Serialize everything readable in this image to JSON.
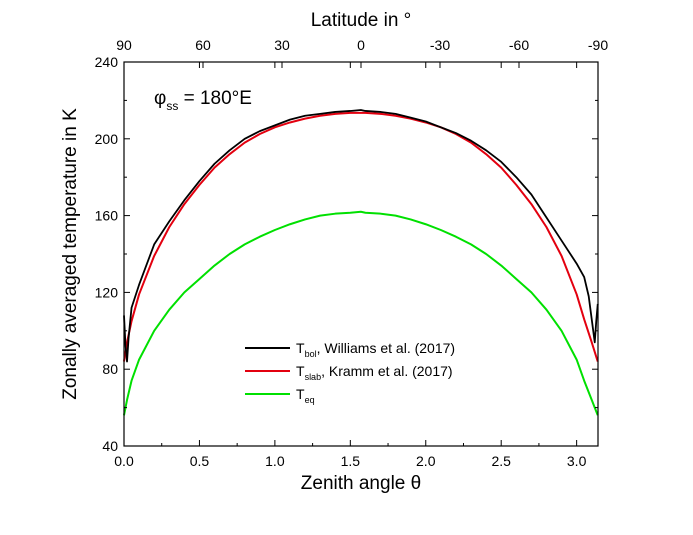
{
  "chart_data": {
    "type": "line",
    "xlabel": "Zenith angle θ",
    "ylabel": "Zonally averaged temperature in K",
    "x2label": "Latitude in °",
    "xlim": [
      0.0,
      3.1416
    ],
    "ylim": [
      40,
      240
    ],
    "x_ticks": [
      "0.0",
      "0.5",
      "1.0",
      "1.5",
      "2.0",
      "2.5",
      "3.0"
    ],
    "y_ticks": [
      "40",
      "80",
      "120",
      "160",
      "200",
      "240"
    ],
    "top_ticks": [
      "90",
      "60",
      "30",
      "0",
      "-30",
      "-60",
      "-90"
    ],
    "annotation": {
      "symbol": "φ",
      "subscript": "ss",
      "text": " = 180°E"
    },
    "legend_position": "lower-center",
    "series": [
      {
        "id": "tbol",
        "legend_main": "T",
        "legend_sub": "bol",
        "legend_rest": ", Williams et al. (2017)",
        "color": "#000000",
        "x": [
          0.0,
          0.01,
          0.02,
          0.03,
          0.05,
          0.1,
          0.2,
          0.3,
          0.4,
          0.5,
          0.6,
          0.7,
          0.8,
          0.9,
          1.0,
          1.1,
          1.2,
          1.3,
          1.4,
          1.5,
          1.57,
          1.6,
          1.7,
          1.8,
          1.9,
          2.0,
          2.1,
          2.2,
          2.3,
          2.4,
          2.5,
          2.6,
          2.7,
          2.8,
          2.9,
          3.0,
          3.05,
          3.08,
          3.1,
          3.12,
          3.13,
          3.14
        ],
        "y": [
          108,
          92,
          84,
          96,
          112,
          124,
          145,
          157,
          168,
          178,
          187,
          194,
          200,
          204,
          207,
          210,
          212,
          213,
          214,
          214.5,
          215,
          214.5,
          214,
          213,
          211,
          209,
          206,
          203,
          199,
          194,
          188,
          180,
          171,
          159,
          147,
          135,
          128,
          118,
          106,
          94,
          105,
          114
        ]
      },
      {
        "id": "tslab",
        "legend_main": "T",
        "legend_sub": "slab",
        "legend_rest": ", Kramm et al. (2017)",
        "color": "#e3000f",
        "x": [
          0.0,
          0.02,
          0.05,
          0.1,
          0.2,
          0.3,
          0.4,
          0.5,
          0.6,
          0.7,
          0.8,
          0.9,
          1.0,
          1.1,
          1.2,
          1.3,
          1.4,
          1.5,
          1.57,
          1.6,
          1.7,
          1.8,
          1.9,
          2.0,
          2.1,
          2.2,
          2.3,
          2.4,
          2.5,
          2.6,
          2.7,
          2.8,
          2.9,
          3.0,
          3.05,
          3.1,
          3.12,
          3.14
        ],
        "y": [
          84,
          94,
          105,
          119,
          139,
          154,
          166,
          176,
          185,
          192,
          198,
          202.5,
          206,
          208.5,
          210.5,
          212,
          213,
          213.5,
          213.5,
          213.5,
          213,
          212,
          210.5,
          208.5,
          206,
          202.5,
          198,
          192,
          185,
          176,
          166,
          154,
          139,
          119,
          106,
          94,
          89,
          84
        ]
      },
      {
        "id": "teq",
        "legend_main": "T",
        "legend_sub": "eq",
        "legend_rest": "",
        "color": "#00e000",
        "x": [
          0.0,
          0.02,
          0.05,
          0.1,
          0.2,
          0.3,
          0.4,
          0.5,
          0.6,
          0.7,
          0.8,
          0.9,
          1.0,
          1.1,
          1.2,
          1.3,
          1.4,
          1.5,
          1.57,
          1.6,
          1.7,
          1.8,
          1.9,
          2.0,
          2.1,
          2.2,
          2.3,
          2.4,
          2.5,
          2.6,
          2.7,
          2.8,
          2.9,
          3.0,
          3.05,
          3.1,
          3.12,
          3.14
        ],
        "y": [
          56,
          64,
          74,
          85,
          100,
          111,
          120,
          127,
          134,
          140,
          145,
          149,
          152.5,
          155.5,
          158,
          160,
          161,
          161.5,
          162,
          161.5,
          161,
          160,
          158,
          155.5,
          152.5,
          149,
          145,
          140,
          134,
          127,
          120,
          111,
          100,
          85,
          74,
          64,
          60,
          56
        ]
      }
    ]
  }
}
